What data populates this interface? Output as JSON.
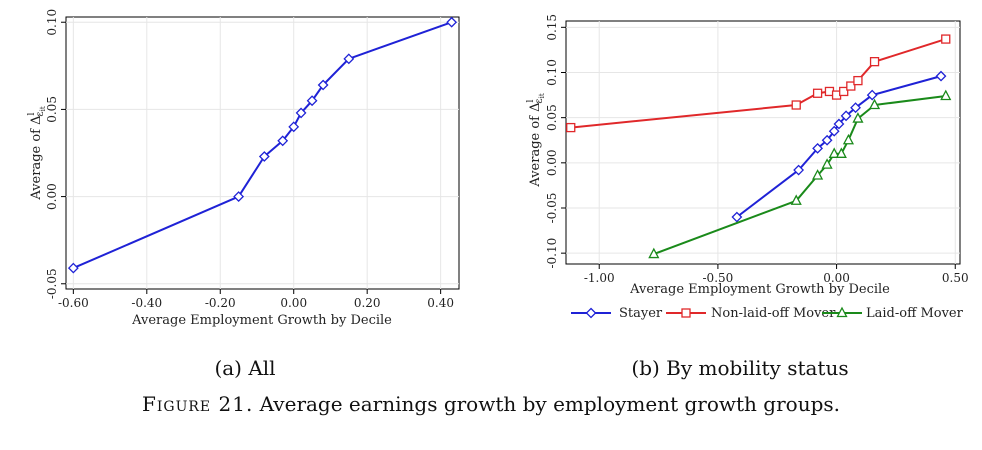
{
  "figure": {
    "caption_label": "Figure 21.",
    "caption_text": "Average earnings growth by employment growth groups."
  },
  "colors": {
    "all": "#1f22d6",
    "stayer": "#1f22d6",
    "non_laid_off": "#e0282a",
    "laid_off": "#1a8a1a",
    "grid": "#e6e6e6",
    "axis": "#000000"
  },
  "chart_data": [
    {
      "id": "a",
      "type": "line",
      "panel_caption": "(a) All",
      "xlabel": "Average Employment Growth by Decile",
      "ylabel_text": "Average of Δ",
      "ylabel_sup": "l",
      "ylabel_sub": "ε",
      "ylabel_subsub": "it",
      "xlim": [
        -0.62,
        0.45
      ],
      "ylim": [
        -0.053,
        0.103
      ],
      "xticks": [
        -0.6,
        -0.4,
        -0.2,
        0.0,
        0.2,
        0.4
      ],
      "xtick_labels": [
        "-0.60",
        "-0.40",
        "-0.20",
        "0.00",
        "0.20",
        "0.40"
      ],
      "yticks": [
        -0.05,
        0.0,
        0.05,
        0.1
      ],
      "ytick_labels": [
        "-0.05",
        "0.00",
        "0.05",
        "0.10"
      ],
      "series": [
        {
          "name": "All",
          "marker": "diamond",
          "color_key": "all",
          "x": [
            -0.6,
            -0.15,
            -0.08,
            -0.03,
            0.0,
            0.02,
            0.05,
            0.08,
            0.15,
            0.43
          ],
          "y": [
            -0.041,
            0.0,
            0.023,
            0.032,
            0.04,
            0.048,
            0.055,
            0.064,
            0.079,
            0.1
          ]
        }
      ]
    },
    {
      "id": "b",
      "type": "line",
      "panel_caption": "(b) By mobility status",
      "xlabel": "Average Employment Growth by Decile",
      "ylabel_text": "Average of Δ",
      "ylabel_sup": "l",
      "ylabel_sub": "ε",
      "ylabel_subsub": "it",
      "xlim": [
        -1.14,
        0.52
      ],
      "ylim": [
        -0.112,
        0.157
      ],
      "xticks": [
        -1.0,
        -0.5,
        0.0,
        0.5
      ],
      "xtick_labels": [
        "-1.00",
        "-0.50",
        "0.00",
        "0.50"
      ],
      "yticks": [
        -0.1,
        -0.05,
        0.0,
        0.05,
        0.1,
        0.15
      ],
      "ytick_labels": [
        "-0.10",
        "-0.05",
        "0.00",
        "0.05",
        "0.10",
        "0.15"
      ],
      "legend_position": "bottom",
      "series": [
        {
          "name": "Stayer",
          "marker": "diamond",
          "color_key": "stayer",
          "x": [
            -0.42,
            -0.16,
            -0.08,
            -0.04,
            -0.01,
            0.01,
            0.04,
            0.08,
            0.15,
            0.44
          ],
          "y": [
            -0.06,
            -0.008,
            0.016,
            0.025,
            0.035,
            0.043,
            0.052,
            0.061,
            0.075,
            0.096
          ]
        },
        {
          "name": "Non-laid-off Mover",
          "marker": "square",
          "color_key": "non_laid_off",
          "x": [
            -1.12,
            -0.17,
            -0.08,
            -0.03,
            0.0,
            0.03,
            0.06,
            0.09,
            0.16,
            0.46
          ],
          "y": [
            0.039,
            0.064,
            0.077,
            0.079,
            0.075,
            0.079,
            0.085,
            0.091,
            0.112,
            0.137
          ]
        },
        {
          "name": "Laid-off Mover",
          "marker": "triangle",
          "color_key": "laid_off",
          "x": [
            -0.77,
            -0.17,
            -0.08,
            -0.04,
            -0.01,
            0.02,
            0.05,
            0.09,
            0.16,
            0.46
          ],
          "y": [
            -0.101,
            -0.042,
            -0.014,
            -0.002,
            0.01,
            0.01,
            0.025,
            0.049,
            0.064,
            0.074
          ]
        }
      ]
    }
  ]
}
